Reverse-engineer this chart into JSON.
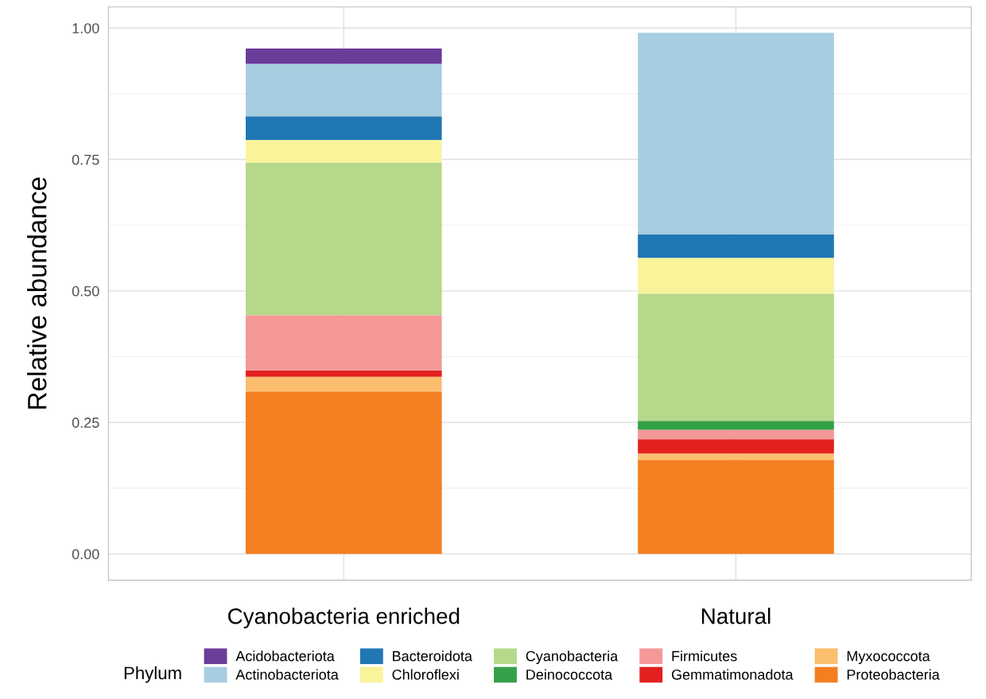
{
  "chart_data": {
    "type": "bar",
    "stacked": true,
    "ylabel": "Relative abundance",
    "legend_title": "Phylum",
    "legend": "bottom",
    "grid": true,
    "categories": [
      "Cyanobacteria enriched",
      "Natural"
    ],
    "ylim": [
      -0.05,
      1.04
    ],
    "yticks": [
      {
        "value": 0,
        "label": "0.00"
      },
      {
        "value": 0.25,
        "label": "0.25"
      },
      {
        "value": 0.5,
        "label": "0.50"
      },
      {
        "value": 0.75,
        "label": "0.75"
      },
      {
        "value": 1,
        "label": "1.00"
      }
    ],
    "series": [
      {
        "name": "Proteobacteria",
        "color": "#f47f20",
        "values": [
          0.309,
          0.179
        ]
      },
      {
        "name": "Myxococcota",
        "color": "#fbbe6e",
        "values": [
          0.028,
          0.012
        ]
      },
      {
        "name": "Gemmatimonadota",
        "color": "#e3201f",
        "values": [
          0.012,
          0.027
        ]
      },
      {
        "name": "Firmicutes",
        "color": "#f59898",
        "values": [
          0.105,
          0.018
        ]
      },
      {
        "name": "Deinococcota",
        "color": "#34a048",
        "values": [
          0,
          0.017
        ]
      },
      {
        "name": "Cyanobacteria",
        "color": "#b6d88a",
        "values": [
          0.29,
          0.242
        ]
      },
      {
        "name": "Chloroflexi",
        "color": "#f9f39a",
        "values": [
          0.043,
          0.068
        ]
      },
      {
        "name": "Bacteroidota",
        "color": "#2077b4",
        "values": [
          0.045,
          0.045
        ]
      },
      {
        "name": "Actinobacteriota",
        "color": "#a7cde0",
        "values": [
          0.1,
          0.383
        ]
      },
      {
        "name": "Acidobacteriota",
        "color": "#6a3d9a",
        "values": [
          0.029,
          0
        ]
      }
    ]
  }
}
